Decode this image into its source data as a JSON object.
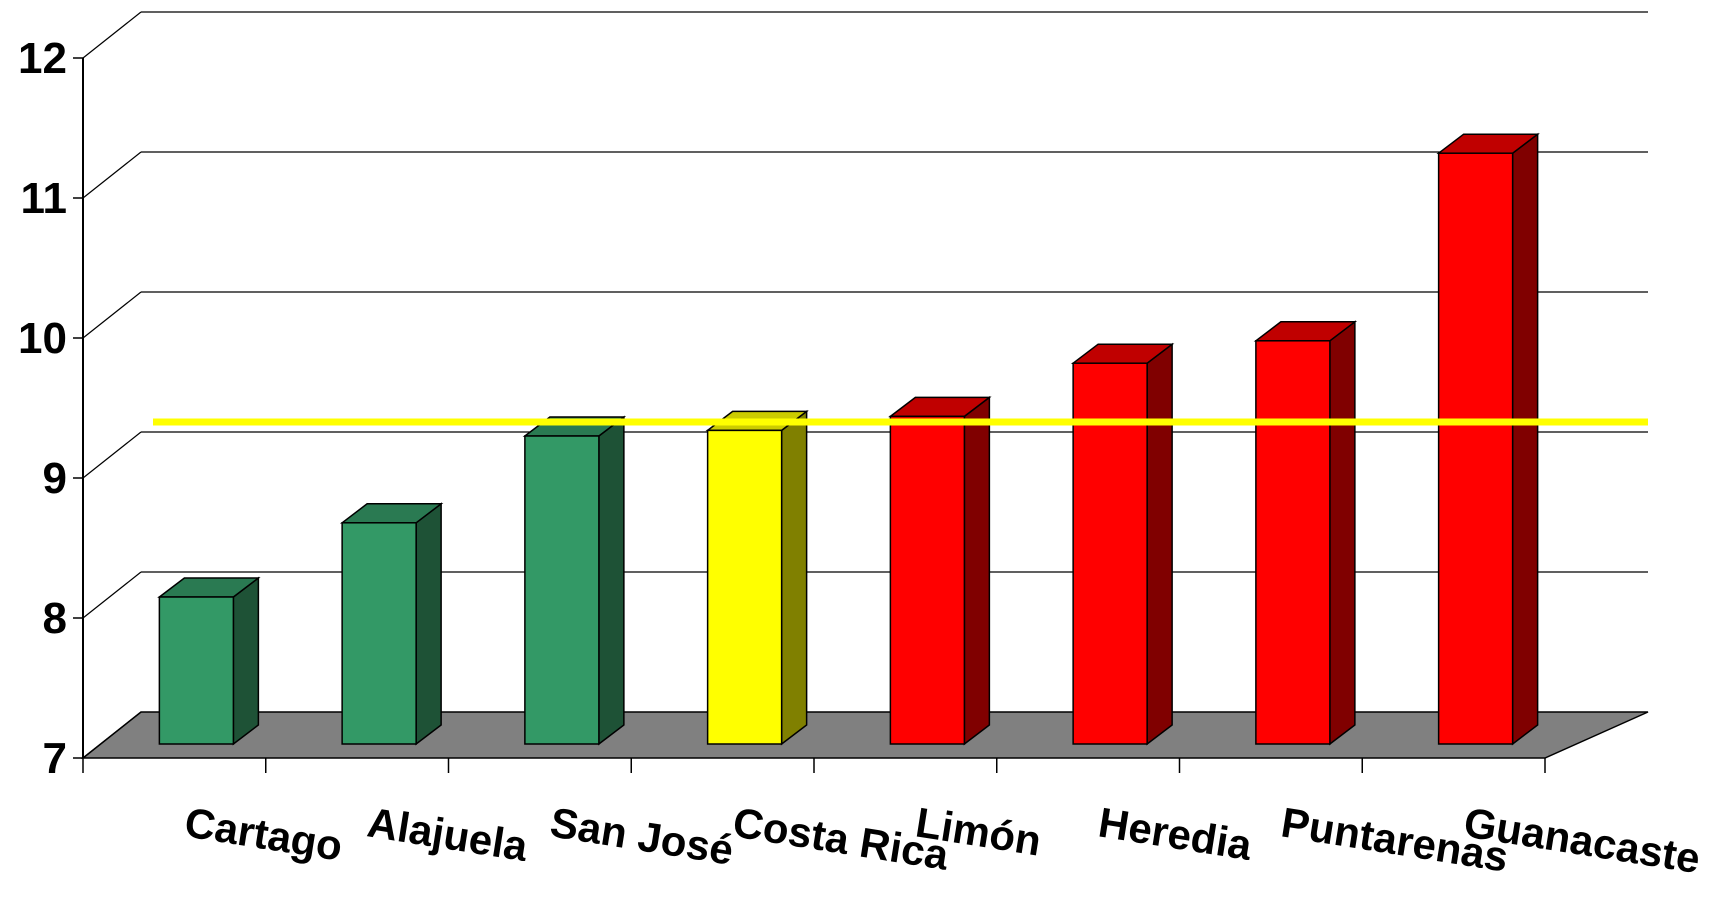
{
  "chart_data": {
    "type": "bar",
    "title": "",
    "xlabel": "",
    "ylabel": "",
    "ylim": [
      7,
      12
    ],
    "yticks": [
      7,
      8,
      9,
      10,
      11,
      12
    ],
    "grid": true,
    "three_d": true,
    "categories": [
      "Cartago",
      "Alajuela",
      "San José",
      "Costa Rica",
      "Limón",
      "Heredia",
      "Puntarenas",
      "Guanacaste"
    ],
    "values": [
      8.05,
      8.58,
      9.2,
      9.24,
      9.34,
      9.72,
      9.88,
      11.22
    ],
    "bar_groups": [
      "below",
      "below",
      "below",
      "national",
      "above",
      "above",
      "above",
      "above"
    ],
    "reference_line": {
      "value": 9.3,
      "color": "#ffff00"
    },
    "colors": {
      "below": {
        "front": "#339966",
        "side": "#1e5236",
        "top": "#2a7a52"
      },
      "national": {
        "front": "#ffff00",
        "side": "#808000",
        "top": "#cccc00"
      },
      "above": {
        "front": "#ff0000",
        "side": "#800000",
        "top": "#c00000"
      },
      "floor": "#808080",
      "grid": "#000000"
    }
  }
}
